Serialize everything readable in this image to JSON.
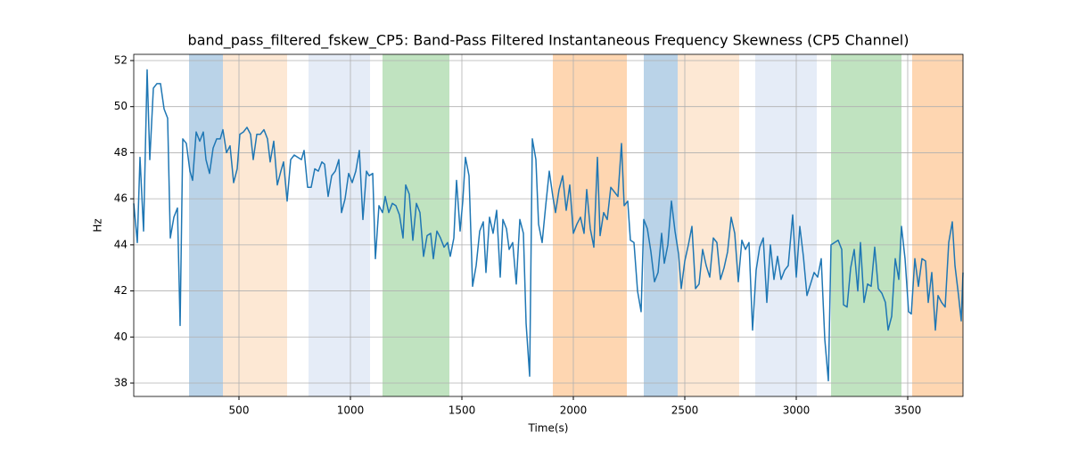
{
  "chart_data": {
    "type": "line",
    "title": "band_pass_filtered_fskew_CP5: Band-Pass Filtered Instantaneous Frequency Skewness (CP5 Channel)",
    "xlabel": "Time(s)",
    "ylabel": "Hz",
    "xlim": [
      28,
      3748
    ],
    "ylim": [
      37.42,
      52.27
    ],
    "xticks": [
      500,
      1000,
      1500,
      2000,
      2500,
      3000,
      3500
    ],
    "yticks": [
      38,
      40,
      42,
      44,
      46,
      48,
      50,
      52
    ],
    "grid": true,
    "color": "#1f77b4",
    "spans": [
      {
        "start": 276,
        "end": 428,
        "color": "#bad3e8"
      },
      {
        "start": 428,
        "end": 716,
        "color": "#fde8d4"
      },
      {
        "start": 812,
        "end": 1088,
        "color": "#e5ecf7"
      },
      {
        "start": 1144,
        "end": 1444,
        "color": "#c0e3c0"
      },
      {
        "start": 1908,
        "end": 2240,
        "color": "#fed6b1"
      },
      {
        "start": 2316,
        "end": 2468,
        "color": "#bad3e8"
      },
      {
        "start": 2468,
        "end": 2744,
        "color": "#fde8d4"
      },
      {
        "start": 2816,
        "end": 3092,
        "color": "#e5ecf7"
      },
      {
        "start": 3156,
        "end": 3472,
        "color": "#c0e3c0"
      },
      {
        "start": 3520,
        "end": 3748,
        "color": "#fed6b1"
      }
    ],
    "x": [
      28,
      44,
      56,
      72,
      88,
      100,
      116,
      132,
      148,
      164,
      180,
      192,
      208,
      224,
      236,
      248,
      264,
      280,
      292,
      308,
      324,
      340,
      352,
      368,
      384,
      400,
      416,
      428,
      444,
      460,
      476,
      492,
      504,
      520,
      536,
      552,
      564,
      580,
      596,
      612,
      628,
      640,
      656,
      672,
      688,
      700,
      716,
      732,
      748,
      764,
      780,
      792,
      808,
      824,
      840,
      856,
      872,
      884,
      900,
      916,
      932,
      948,
      960,
      976,
      992,
      1008,
      1024,
      1040,
      1056,
      1072,
      1084,
      1100,
      1112,
      1128,
      1144,
      1156,
      1172,
      1188,
      1204,
      1220,
      1236,
      1248,
      1264,
      1280,
      1296,
      1312,
      1328,
      1344,
      1360,
      1372,
      1388,
      1404,
      1420,
      1436,
      1448,
      1464,
      1476,
      1492,
      1504,
      1516,
      1532,
      1548,
      1564,
      1580,
      1596,
      1608,
      1624,
      1640,
      1656,
      1672,
      1684,
      1700,
      1712,
      1728,
      1744,
      1760,
      1776,
      1788,
      1804,
      1816,
      1832,
      1844,
      1860,
      1876,
      1892,
      1908,
      1920,
      1936,
      1952,
      1968,
      1984,
      2000,
      2016,
      2032,
      2048,
      2060,
      2076,
      2092,
      2108,
      2120,
      2136,
      2152,
      2168,
      2184,
      2200,
      2216,
      2228,
      2244,
      2256,
      2272,
      2288,
      2304,
      2316,
      2332,
      2348,
      2364,
      2380,
      2396,
      2408,
      2424,
      2440,
      2456,
      2472,
      2484,
      2500,
      2516,
      2532,
      2548,
      2564,
      2580,
      2596,
      2612,
      2628,
      2644,
      2660,
      2676,
      2692,
      2708,
      2724,
      2740,
      2756,
      2772,
      2788,
      2804,
      2820,
      2836,
      2852,
      2868,
      2884,
      2900,
      2916,
      2932,
      2948,
      2964,
      2984,
      3000,
      3016,
      3032,
      3048,
      3064,
      3080,
      3096,
      3112,
      3128,
      3144,
      3156,
      3172,
      3188,
      3204,
      3212,
      3228,
      3244,
      3260,
      3276,
      3288,
      3304,
      3320,
      3336,
      3352,
      3368,
      3384,
      3400,
      3412,
      3428,
      3444,
      3460,
      3472,
      3488,
      3504,
      3516,
      3532,
      3548,
      3564,
      3580,
      3592,
      3608,
      3624,
      3636,
      3652,
      3668,
      3684,
      3700,
      3712,
      3728,
      3740,
      3748
    ],
    "values": [
      45.8,
      44.1,
      47.8,
      44.6,
      51.6,
      47.7,
      50.8,
      51.0,
      51.0,
      49.9,
      49.5,
      44.3,
      45.2,
      45.6,
      40.5,
      48.6,
      48.4,
      47.2,
      46.8,
      48.9,
      48.5,
      48.9,
      47.7,
      47.1,
      48.2,
      48.6,
      48.6,
      49.0,
      48.0,
      48.3,
      46.7,
      47.3,
      48.8,
      48.9,
      49.1,
      48.8,
      47.7,
      48.8,
      48.8,
      49.0,
      48.6,
      47.6,
      48.5,
      46.6,
      47.2,
      47.6,
      45.9,
      47.7,
      47.9,
      47.8,
      47.7,
      48.1,
      46.5,
      46.5,
      47.3,
      47.2,
      47.6,
      47.5,
      46.1,
      47.0,
      47.2,
      47.7,
      45.4,
      46.0,
      47.1,
      46.7,
      47.2,
      48.1,
      45.1,
      47.2,
      47.0,
      47.1,
      43.4,
      45.7,
      45.4,
      46.1,
      45.4,
      45.8,
      45.7,
      45.3,
      44.3,
      46.6,
      46.2,
      44.2,
      45.8,
      45.4,
      43.5,
      44.4,
      44.5,
      43.4,
      44.6,
      44.3,
      43.9,
      44.1,
      43.5,
      44.3,
      46.8,
      44.6,
      45.9,
      47.8,
      47.0,
      42.2,
      43.1,
      44.6,
      45.0,
      42.8,
      45.2,
      44.5,
      45.5,
      42.6,
      45.1,
      44.7,
      43.8,
      44.1,
      42.3,
      45.1,
      44.5,
      40.6,
      38.3,
      48.6,
      47.7,
      44.9,
      44.1,
      45.7,
      47.2,
      46.1,
      45.4,
      46.4,
      47.0,
      45.5,
      46.6,
      44.5,
      44.9,
      45.2,
      44.5,
      46.4,
      44.7,
      43.9,
      47.8,
      44.4,
      45.4,
      45.1,
      46.5,
      46.3,
      46.1,
      48.4,
      45.7,
      45.9,
      44.2,
      44.1,
      42.0,
      41.1,
      45.1,
      44.7,
      43.7,
      42.4,
      42.8,
      44.5,
      43.2,
      44.0,
      45.9,
      44.6,
      43.6,
      42.1,
      43.3,
      44.0,
      44.8,
      42.1,
      42.3,
      43.8,
      43.1,
      42.6,
      44.3,
      44.1,
      42.5,
      43.0,
      43.7,
      45.2,
      44.5,
      42.4,
      44.2,
      43.8,
      44.1,
      40.3,
      42.9,
      43.9,
      44.3,
      41.5,
      44.0,
      42.5,
      43.5,
      42.5,
      42.9,
      43.1,
      45.3,
      42.6,
      44.8,
      43.5,
      41.8,
      42.3,
      42.8,
      42.6,
      43.4,
      39.9,
      38.1,
      44.0,
      44.1,
      44.2,
      43.8,
      41.4,
      41.3,
      43.0,
      43.8,
      42.0,
      44.1,
      41.5,
      42.3,
      42.2,
      43.9,
      42.1,
      41.9,
      41.5,
      40.3,
      40.9,
      43.4,
      42.5,
      44.8,
      43.4,
      41.1,
      41.0,
      43.4,
      42.2,
      43.4,
      43.3,
      41.5,
      42.8,
      40.3,
      41.8,
      41.5,
      41.3,
      44.1,
      45.0,
      43.1,
      41.8,
      40.7,
      42.8
    ]
  }
}
